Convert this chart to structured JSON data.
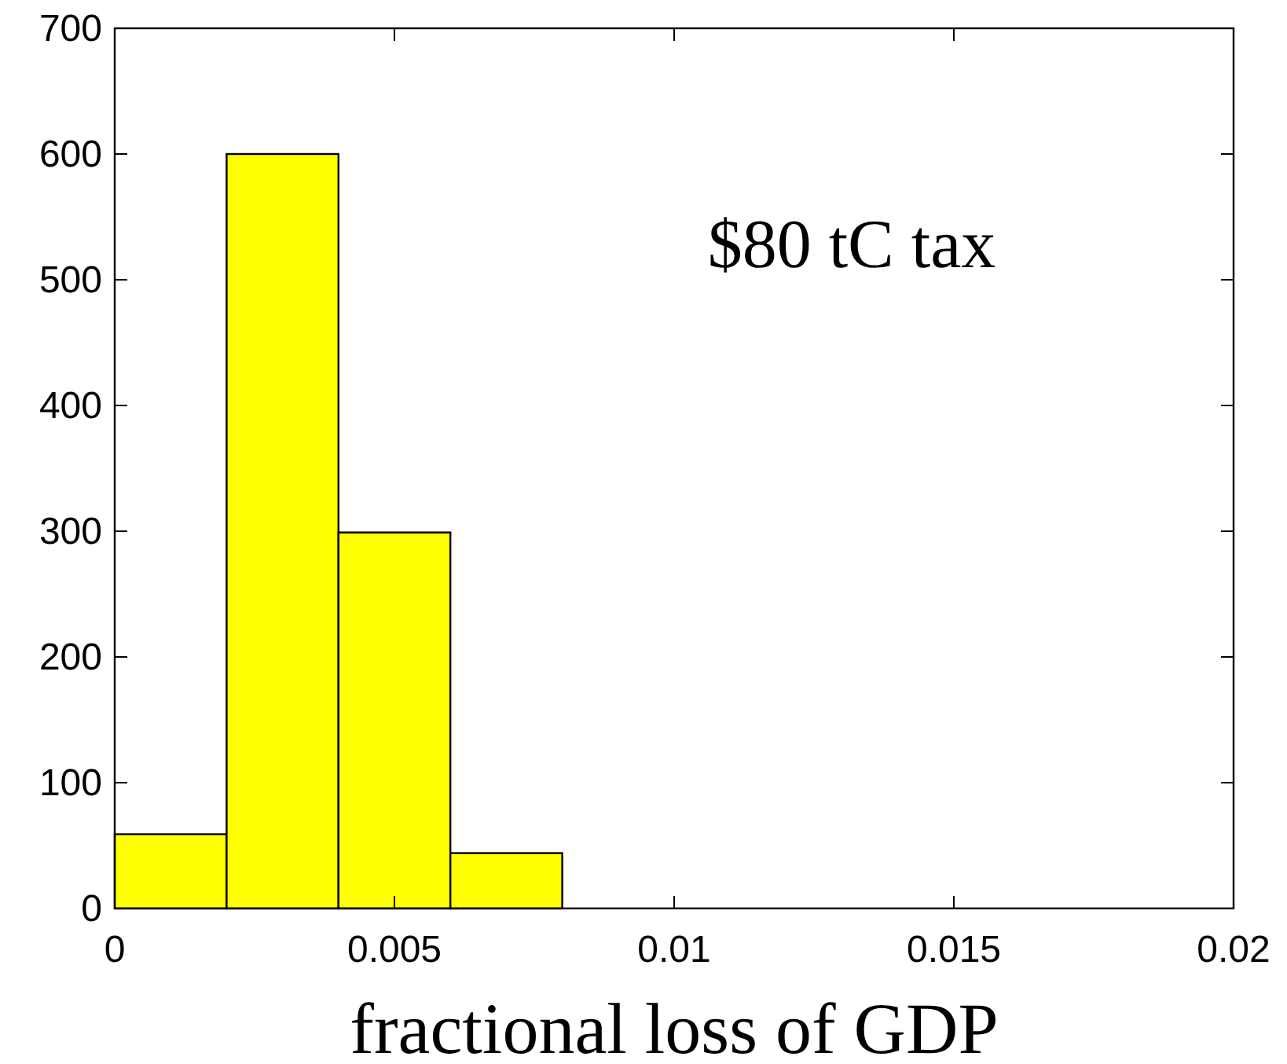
{
  "chart_data": {
    "type": "histogram",
    "xlabel": "fractional loss of GDP",
    "annotations": [
      "$80 tC tax"
    ],
    "bins": [
      0,
      0.002,
      0.004,
      0.006,
      0.008,
      0.01,
      0.012,
      0.014,
      0.016,
      0.018,
      0.02
    ],
    "values": [
      59,
      600,
      299,
      44,
      0,
      0,
      0,
      0,
      0,
      0
    ],
    "color": "#ffff00",
    "xlim": [
      0,
      0.02
    ],
    "xticks": [
      0,
      0.005,
      0.01,
      0.015,
      0.02
    ],
    "ylim": [
      0,
      700
    ],
    "yticks": [
      0,
      100,
      200,
      300,
      400,
      500,
      600,
      700
    ],
    "grid": false
  }
}
